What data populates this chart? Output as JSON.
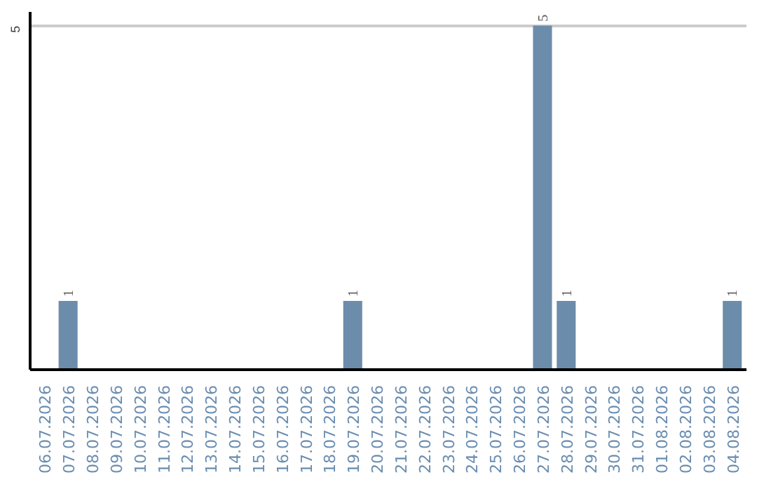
{
  "chart_data": {
    "type": "bar",
    "categories": [
      "06.07.2026",
      "07.07.2026",
      "08.07.2026",
      "09.07.2026",
      "10.07.2026",
      "11.07.2026",
      "12.07.2026",
      "13.07.2026",
      "14.07.2026",
      "15.07.2026",
      "16.07.2026",
      "17.07.2026",
      "18.07.2026",
      "19.07.2026",
      "20.07.2026",
      "21.07.2026",
      "22.07.2026",
      "23.07.2026",
      "24.07.2026",
      "25.07.2026",
      "26.07.2026",
      "27.07.2026",
      "28.07.2026",
      "29.07.2026",
      "30.07.2026",
      "31.07.2026",
      "01.08.2026",
      "02.08.2026",
      "03.08.2026",
      "04.08.2026"
    ],
    "values": [
      0,
      1,
      0,
      0,
      0,
      0,
      0,
      0,
      0,
      0,
      0,
      0,
      0,
      1,
      0,
      0,
      0,
      0,
      0,
      0,
      0,
      5,
      1,
      0,
      0,
      0,
      0,
      0,
      0,
      1
    ],
    "value_labels": [
      null,
      "1",
      null,
      null,
      null,
      null,
      null,
      null,
      null,
      null,
      null,
      null,
      null,
      "1",
      null,
      null,
      null,
      null,
      null,
      null,
      null,
      "5",
      "1",
      null,
      null,
      null,
      null,
      null,
      null,
      "1"
    ],
    "color": "#6c8cab",
    "ylim": [
      0,
      5.2
    ],
    "yticks": [
      5
    ],
    "grid": "y"
  }
}
